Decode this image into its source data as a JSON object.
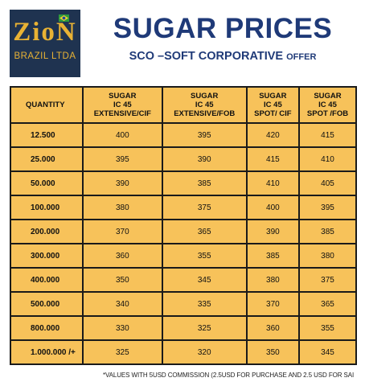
{
  "logo": {
    "wordmark": "ZioN",
    "subline": "BRAZIL LTDA"
  },
  "header": {
    "title": "SUGAR PRICES",
    "subtitle": "SCO –SOFT CORPORATIVE",
    "subtitle_suffix": "OFFER"
  },
  "table": {
    "columns": [
      "QUANTITY",
      [
        "SUGAR",
        "IC 45",
        "EXTENSIVE/CIF"
      ],
      [
        "SUGAR",
        "IC 45",
        "EXTENSIVE/FOB"
      ],
      [
        "SUGAR",
        "IC 45",
        "SPOT/ CIF"
      ],
      [
        "SUGAR",
        "IC 45",
        "SPOT /FOB"
      ]
    ],
    "rows": [
      [
        "12.500",
        "400",
        "395",
        "420",
        "415"
      ],
      [
        "25.000",
        "395",
        "390",
        "415",
        "410"
      ],
      [
        "50.000",
        "390",
        "385",
        "410",
        "405"
      ],
      [
        "100.000",
        "380",
        "375",
        "400",
        "395"
      ],
      [
        "200.000",
        "370",
        "365",
        "390",
        "385"
      ],
      [
        "300.000",
        "360",
        "355",
        "385",
        "380"
      ],
      [
        "400.000",
        "350",
        "345",
        "380",
        "375"
      ],
      [
        "500.000",
        "340",
        "335",
        "370",
        "365"
      ],
      [
        "800.000",
        "330",
        "325",
        "360",
        "355"
      ],
      [
        "1.000.000 /+",
        "325",
        "320",
        "350",
        "345"
      ]
    ]
  },
  "footnote": "*VALUES WITH 5USD COMMISSION (2.5USD FOR PURCHASE AND 2.5 USD FOR SAI",
  "colors": {
    "logo_bg": "#1f3350",
    "logo_gold": "#e8b234",
    "title_blue": "#1f3a78",
    "table_fill": "#f7c25a"
  }
}
